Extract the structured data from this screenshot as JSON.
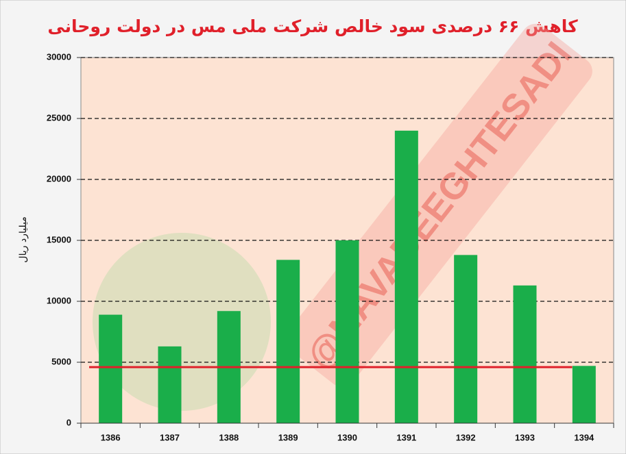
{
  "chart_data": {
    "type": "bar",
    "title": "کاهش ۶۶ درصدی سود خالص شرکت ملی مس در دولت روحانی",
    "y_label": "میلیارد ریال",
    "watermark": "@NAVADEEGHTESADI",
    "categories": [
      "1386",
      "1387",
      "1388",
      "1389",
      "1390",
      "1391",
      "1392",
      "1393",
      "1394"
    ],
    "values": [
      8900,
      6300,
      9200,
      13400,
      15000,
      24000,
      13800,
      11300,
      4700
    ],
    "color": "#1aae4a",
    "reference_line": 4600,
    "reference_color": "#e0202a",
    "ylim": [
      0,
      30000
    ],
    "yticks": [
      0,
      5000,
      10000,
      15000,
      20000,
      25000,
      30000
    ],
    "grid": true
  }
}
